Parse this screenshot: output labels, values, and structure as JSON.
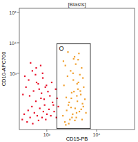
{
  "chart_data": {
    "type": "scatter",
    "title": "[Blasts]",
    "x_label": "CD15-PB",
    "y_label": "CD10-APC700",
    "log": true,
    "xlim": [
      280,
      58000
    ],
    "ylim": [
      14,
      137000
    ],
    "xticks": [
      {
        "value": 1000,
        "label": "10³"
      },
      {
        "value": 10000,
        "label": "10⁴"
      }
    ],
    "yticks": [
      {
        "value": 1000,
        "label": "10³"
      },
      {
        "value": 10000,
        "label": "10⁴"
      },
      {
        "value": 100000,
        "label": "10⁵"
      }
    ],
    "gate": {
      "label": "O",
      "x": [
        1600,
        7500
      ],
      "y": [
        15,
        9500
      ]
    },
    "series": [
      {
        "color": "#e8102a",
        "marker": "dot",
        "x": [
          320,
          350,
          400,
          420,
          460,
          500,
          520,
          560,
          600,
          640,
          680,
          720,
          760,
          800,
          850,
          900,
          950,
          1000,
          1100,
          1200,
          1300,
          1400,
          1550,
          1700,
          330,
          380,
          450,
          540,
          620,
          700,
          780,
          880,
          980,
          1150,
          1350,
          1600,
          360,
          430,
          510,
          590,
          670,
          750,
          830,
          930,
          1050,
          1250,
          470,
          610,
          820,
          1500
        ],
        "values": [
          30,
          45,
          25,
          60,
          35,
          80,
          22,
          50,
          120,
          40,
          28,
          70,
          150,
          35,
          55,
          90,
          30,
          45,
          65,
          40,
          110,
          55,
          35,
          80,
          200,
          350,
          180,
          260,
          500,
          300,
          220,
          140,
          400,
          180,
          90,
          150,
          800,
          600,
          1200,
          900,
          450,
          1800,
          700,
          350,
          250,
          500,
          2200,
          1500,
          1000,
          300
        ]
      },
      {
        "color": "#f0a030",
        "marker": "dot",
        "x": [
          2100,
          2300,
          2500,
          2700,
          2900,
          3100,
          3300,
          3500,
          3700,
          3900,
          4100,
          4300,
          4500,
          4800,
          5100,
          5400,
          5800,
          6100,
          2200,
          2600,
          3000,
          3400,
          3800,
          4200,
          4600,
          5000,
          5500,
          2400,
          2800,
          3200,
          3600,
          4000,
          4400,
          4900,
          5300,
          2150,
          2750,
          3350,
          3950,
          4700,
          2450,
          3050,
          3650,
          4250,
          5200,
          2650,
          3450,
          4050,
          2350,
          3150
        ],
        "values": [
          40,
          25,
          60,
          90,
          30,
          150,
          45,
          250,
          70,
          35,
          120,
          500,
          55,
          200,
          30,
          80,
          140,
          50,
          400,
          800,
          1200,
          600,
          2000,
          300,
          900,
          1500,
          350,
          20,
          110,
          35,
          3500,
          180,
          4500,
          65,
          700,
          2500,
          22,
          1000,
          50,
          260,
          160,
          75,
          28,
          2800,
          100,
          5000,
          3000,
          450,
          1800,
          230
        ]
      }
    ]
  }
}
